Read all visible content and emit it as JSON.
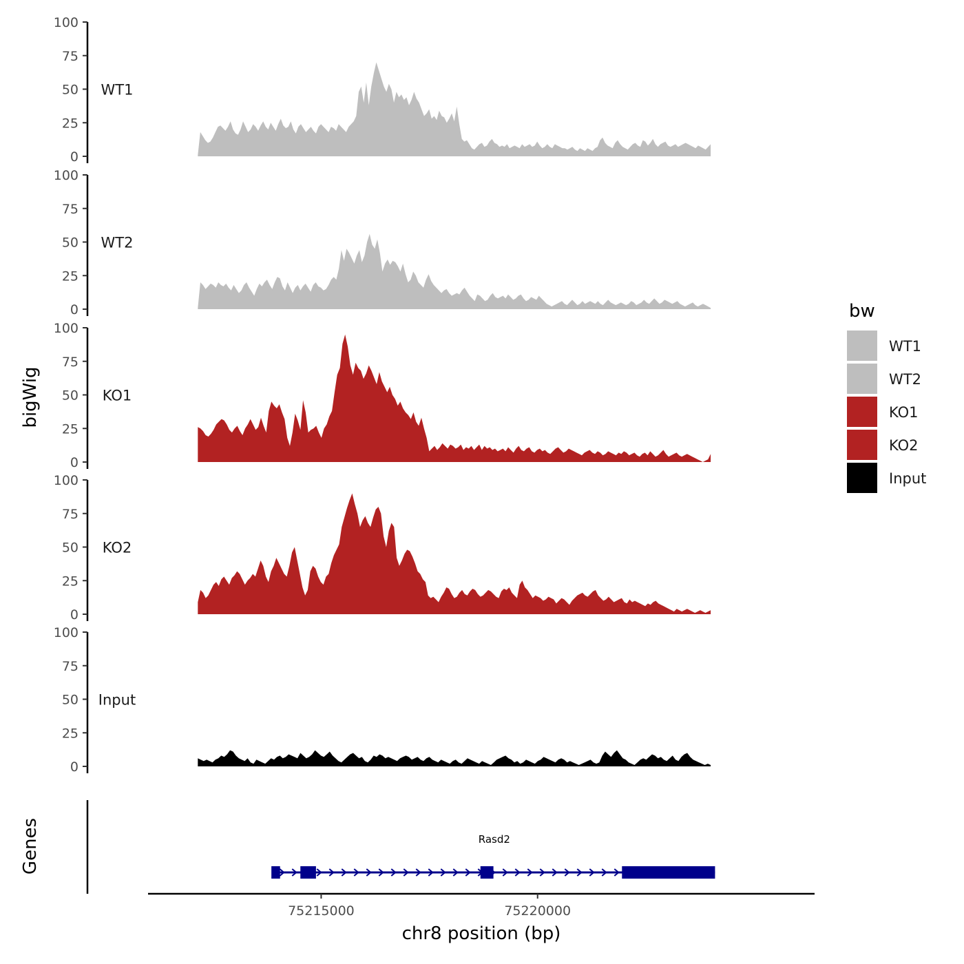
{
  "chart_data": {
    "type": "area",
    "ylabel": "bigWig",
    "xlabel": "chr8 position (bp)",
    "ylim": [
      0,
      100
    ],
    "yticks": [
      0,
      25,
      50,
      75,
      100
    ],
    "xlim": [
      75211000,
      75226400
    ],
    "xticks": [
      75215000,
      75220000
    ],
    "x_start": 75212150,
    "x_end": 75224000,
    "legend": {
      "title": "bw",
      "position": "right",
      "entries": [
        {
          "label": "WT1",
          "color": "#bebebe"
        },
        {
          "label": "WT2",
          "color": "#bebebe"
        },
        {
          "label": "KO1",
          "color": "#b22222"
        },
        {
          "label": "KO2",
          "color": "#b22222"
        },
        {
          "label": "Input",
          "color": "#000000"
        }
      ]
    },
    "series": [
      {
        "name": "WT1",
        "color": "#bebebe",
        "values": [
          1,
          18,
          15,
          12,
          10,
          11,
          14,
          18,
          22,
          23,
          21,
          19,
          22,
          26,
          20,
          17,
          16,
          20,
          26,
          22,
          18,
          20,
          24,
          22,
          19,
          23,
          26,
          22,
          20,
          25,
          22,
          19,
          24,
          28,
          23,
          21,
          22,
          26,
          20,
          17,
          22,
          24,
          21,
          18,
          20,
          22,
          19,
          17,
          22,
          24,
          22,
          20,
          18,
          22,
          21,
          19,
          24,
          22,
          20,
          18,
          22,
          24,
          26,
          30,
          48,
          52,
          40,
          55,
          38,
          52,
          62,
          70,
          64,
          58,
          52,
          48,
          54,
          50,
          40,
          48,
          44,
          46,
          42,
          44,
          38,
          42,
          48,
          43,
          40,
          35,
          30,
          32,
          35,
          28,
          30,
          27,
          34,
          30,
          29,
          25,
          28,
          32,
          26,
          37,
          24,
          13,
          11,
          12,
          9,
          6,
          5,
          7,
          9,
          10,
          7,
          8,
          11,
          13,
          10,
          9,
          7,
          8,
          7,
          9,
          6,
          7,
          8,
          7,
          6,
          9,
          7,
          8,
          9,
          7,
          8,
          11,
          8,
          6,
          7,
          9,
          7,
          6,
          9,
          8,
          7,
          6,
          6,
          5,
          6,
          7,
          5,
          4,
          6,
          5,
          4,
          6,
          5,
          4,
          6,
          7,
          12,
          14,
          10,
          8,
          7,
          6,
          10,
          12,
          9,
          7,
          6,
          5,
          7,
          9,
          10,
          8,
          7,
          12,
          11,
          8,
          10,
          13,
          9,
          7,
          9,
          10,
          11,
          8,
          7,
          8,
          9,
          7,
          8,
          9,
          10,
          9,
          8,
          7,
          6,
          8,
          7,
          6,
          5,
          7,
          9
        ]
      },
      {
        "name": "WT2",
        "color": "#bebebe",
        "values": [
          1,
          20,
          18,
          15,
          17,
          19,
          18,
          16,
          20,
          18,
          17,
          19,
          16,
          14,
          18,
          15,
          12,
          14,
          18,
          20,
          16,
          13,
          10,
          15,
          19,
          17,
          20,
          22,
          18,
          15,
          20,
          24,
          23,
          17,
          14,
          20,
          16,
          12,
          16,
          18,
          14,
          17,
          19,
          16,
          13,
          18,
          20,
          17,
          16,
          14,
          15,
          18,
          22,
          24,
          22,
          30,
          44,
          36,
          45,
          42,
          38,
          34,
          40,
          44,
          35,
          40,
          50,
          56,
          48,
          45,
          52,
          42,
          28,
          34,
          37,
          33,
          36,
          35,
          32,
          28,
          34,
          26,
          20,
          22,
          28,
          25,
          20,
          18,
          16,
          22,
          26,
          21,
          18,
          16,
          14,
          12,
          14,
          15,
          12,
          10,
          11,
          12,
          11,
          14,
          16,
          13,
          10,
          8,
          6,
          11,
          10,
          8,
          6,
          7,
          10,
          12,
          9,
          8,
          9,
          10,
          8,
          11,
          9,
          7,
          8,
          10,
          11,
          8,
          6,
          7,
          9,
          8,
          7,
          10,
          8,
          6,
          4,
          3,
          2,
          3,
          4,
          5,
          6,
          4,
          3,
          5,
          7,
          5,
          3,
          4,
          6,
          4,
          5,
          6,
          5,
          4,
          6,
          4,
          3,
          5,
          7,
          5,
          4,
          3,
          4,
          5,
          4,
          3,
          4,
          6,
          5,
          3,
          4,
          5,
          7,
          5,
          4,
          6,
          8,
          6,
          4,
          5,
          7,
          6,
          5,
          4,
          5,
          6,
          4,
          3,
          2,
          3,
          4,
          5,
          3,
          2,
          3,
          4,
          3,
          2,
          1
        ]
      },
      {
        "name": "KO1",
        "color": "#b22222",
        "values": [
          26,
          25,
          23,
          20,
          19,
          21,
          24,
          28,
          30,
          32,
          31,
          28,
          24,
          22,
          25,
          27,
          23,
          20,
          25,
          28,
          32,
          28,
          24,
          26,
          33,
          27,
          22,
          38,
          45,
          42,
          40,
          43,
          37,
          32,
          18,
          12,
          22,
          36,
          31,
          24,
          46,
          37,
          22,
          24,
          25,
          27,
          22,
          18,
          25,
          28,
          34,
          38,
          52,
          65,
          70,
          88,
          95,
          86,
          72,
          65,
          74,
          70,
          68,
          62,
          66,
          72,
          68,
          63,
          58,
          67,
          60,
          56,
          52,
          56,
          50,
          47,
          42,
          45,
          40,
          37,
          35,
          32,
          37,
          30,
          27,
          33,
          25,
          18,
          8,
          10,
          12,
          9,
          11,
          14,
          12,
          10,
          13,
          12,
          10,
          11,
          13,
          9,
          11,
          10,
          12,
          9,
          11,
          13,
          9,
          12,
          10,
          11,
          9,
          10,
          8,
          9,
          10,
          8,
          11,
          9,
          7,
          10,
          12,
          9,
          8,
          10,
          11,
          8,
          7,
          9,
          10,
          8,
          9,
          7,
          6,
          8,
          10,
          11,
          9,
          7,
          8,
          10,
          9,
          8,
          7,
          6,
          5,
          7,
          8,
          9,
          7,
          6,
          8,
          7,
          5,
          6,
          8,
          7,
          6,
          5,
          7,
          6,
          8,
          7,
          5,
          6,
          7,
          5,
          4,
          6,
          7,
          5,
          8,
          6,
          4,
          5,
          7,
          9,
          6,
          4,
          5,
          6,
          7,
          5,
          4,
          5,
          6,
          5,
          4,
          3,
          2,
          1,
          0,
          1,
          2,
          6
        ]
      },
      {
        "name": "KO2",
        "color": "#b22222",
        "values": [
          9,
          18,
          16,
          12,
          14,
          18,
          22,
          24,
          21,
          26,
          28,
          25,
          22,
          27,
          29,
          32,
          30,
          26,
          22,
          25,
          27,
          30,
          28,
          34,
          40,
          36,
          28,
          24,
          32,
          36,
          42,
          38,
          34,
          30,
          28,
          36,
          46,
          50,
          40,
          30,
          20,
          14,
          18,
          32,
          36,
          34,
          28,
          24,
          22,
          28,
          30,
          38,
          44,
          48,
          52,
          65,
          72,
          79,
          85,
          90,
          82,
          75,
          65,
          70,
          73,
          68,
          65,
          72,
          78,
          80,
          75,
          58,
          50,
          62,
          68,
          65,
          42,
          36,
          40,
          45,
          48,
          47,
          43,
          38,
          32,
          30,
          26,
          24,
          14,
          12,
          13,
          11,
          9,
          13,
          16,
          20,
          19,
          15,
          12,
          13,
          16,
          18,
          15,
          14,
          17,
          19,
          18,
          15,
          13,
          14,
          16,
          18,
          17,
          15,
          13,
          12,
          17,
          19,
          18,
          20,
          16,
          14,
          12,
          22,
          25,
          20,
          18,
          15,
          12,
          14,
          13,
          12,
          10,
          11,
          13,
          12,
          11,
          8,
          10,
          12,
          11,
          9,
          7,
          10,
          12,
          14,
          15,
          16,
          14,
          13,
          15,
          17,
          18,
          14,
          12,
          10,
          11,
          13,
          11,
          9,
          10,
          11,
          12,
          9,
          8,
          11,
          9,
          10,
          9,
          8,
          7,
          6,
          8,
          7,
          9,
          10,
          8,
          7,
          6,
          5,
          4,
          3,
          2,
          4,
          3,
          2,
          3,
          4,
          3,
          2,
          1,
          2,
          3,
          2,
          1,
          2,
          3
        ]
      },
      {
        "name": "Input",
        "color": "#000000",
        "values": [
          6,
          5,
          4,
          5,
          4,
          3,
          5,
          6,
          8,
          7,
          9,
          12,
          11,
          8,
          6,
          5,
          4,
          6,
          3,
          2,
          5,
          4,
          3,
          2,
          4,
          6,
          5,
          7,
          8,
          6,
          7,
          9,
          8,
          7,
          6,
          10,
          8,
          6,
          7,
          9,
          12,
          10,
          8,
          7,
          9,
          11,
          8,
          6,
          4,
          3,
          5,
          7,
          9,
          10,
          8,
          6,
          7,
          4,
          3,
          5,
          8,
          7,
          9,
          8,
          6,
          7,
          6,
          5,
          4,
          6,
          7,
          8,
          7,
          5,
          6,
          7,
          5,
          4,
          6,
          7,
          5,
          4,
          3,
          5,
          4,
          3,
          2,
          4,
          5,
          3,
          2,
          4,
          6,
          5,
          4,
          3,
          2,
          4,
          3,
          2,
          1,
          3,
          5,
          6,
          7,
          8,
          6,
          5,
          3,
          4,
          2,
          3,
          5,
          4,
          3,
          2,
          4,
          5,
          7,
          6,
          5,
          4,
          3,
          5,
          6,
          5,
          3,
          4,
          3,
          2,
          1,
          2,
          3,
          4,
          5,
          3,
          2,
          3,
          8,
          11,
          9,
          7,
          10,
          12,
          9,
          6,
          5,
          3,
          2,
          1,
          3,
          5,
          6,
          5,
          7,
          9,
          8,
          6,
          7,
          5,
          4,
          6,
          8,
          5,
          4,
          7,
          9,
          10,
          7,
          5,
          4,
          3,
          2,
          1,
          2,
          1
        ]
      }
    ],
    "genes": {
      "label_title": "Genes",
      "items": [
        {
          "name": "Rasd2",
          "strand": "+",
          "start": 75213900,
          "end": 75224100,
          "color": "#00008b",
          "exons": [
            {
              "start": 75213850,
              "end": 75214050
            },
            {
              "start": 75214520,
              "end": 75214880
            },
            {
              "start": 75218680,
              "end": 75218980
            },
            {
              "start": 75221950,
              "end": 75224100
            }
          ]
        }
      ]
    }
  }
}
